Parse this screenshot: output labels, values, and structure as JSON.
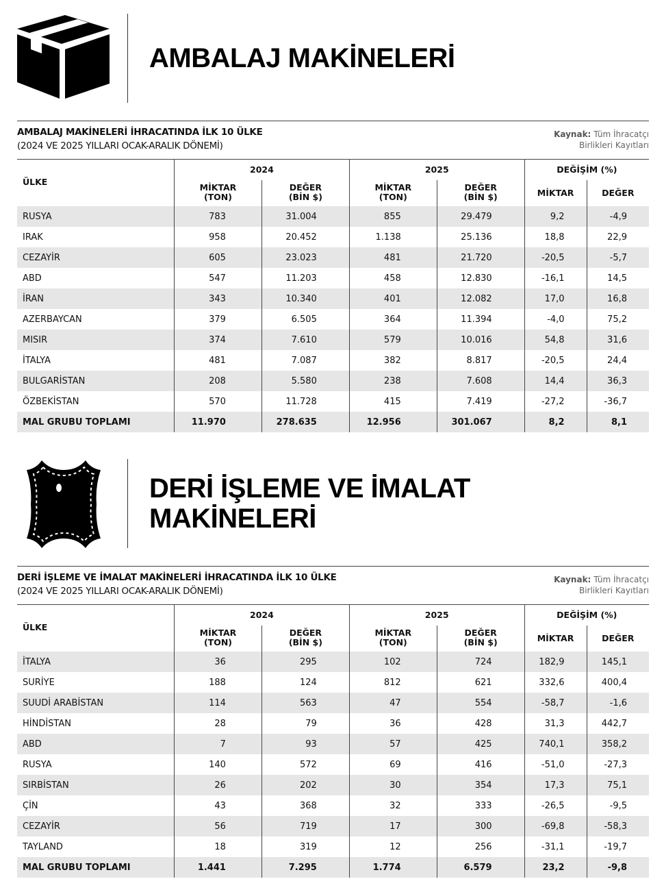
{
  "sections": [
    {
      "title_lines": [
        "AMBALAJ MAKİNELERİ"
      ],
      "icon": "box-icon",
      "table_title": "AMBALAJ MAKİNELERİ İHRACATINDA İLK 10 ÜLKE",
      "table_subtitle": "(2024 VE 2025 YILLARI OCAK-ARALIK DÖNEMİ)",
      "source_label": "Kaynak:",
      "source_line1": "Tüm İhracatçı",
      "source_line2": "Birlikleri Kayıtları",
      "headers": {
        "country": "ÜLKE",
        "y2024": "2024",
        "y2025": "2025",
        "change": "DEĞİŞİM (%)",
        "qty": "MİKTAR\n(TON)",
        "val": "DEĞER\n(BİN $)",
        "qty_short": "MİKTAR",
        "val_short": "DEĞER"
      },
      "rows": [
        [
          "RUSYA",
          "783",
          "31.004",
          "855",
          "29.479",
          "9,2",
          "-4,9"
        ],
        [
          "IRAK",
          "958",
          "20.452",
          "1.138",
          "25.136",
          "18,8",
          "22,9"
        ],
        [
          "CEZAYİR",
          "605",
          "23.023",
          "481",
          "21.720",
          "-20,5",
          "-5,7"
        ],
        [
          "ABD",
          "547",
          "11.203",
          "458",
          "12.830",
          "-16,1",
          "14,5"
        ],
        [
          "İRAN",
          "343",
          "10.340",
          "401",
          "12.082",
          "17,0",
          "16,8"
        ],
        [
          "AZERBAYCAN",
          "379",
          "6.505",
          "364",
          "11.394",
          "-4,0",
          "75,2"
        ],
        [
          "MISIR",
          "374",
          "7.610",
          "579",
          "10.016",
          "54,8",
          "31,6"
        ],
        [
          "İTALYA",
          "481",
          "7.087",
          "382",
          "8.817",
          "-20,5",
          "24,4"
        ],
        [
          "BULGARİSTAN",
          "208",
          "5.580",
          "238",
          "7.608",
          "14,4",
          "36,3"
        ],
        [
          "ÖZBEKİSTAN",
          "570",
          "11.728",
          "415",
          "7.419",
          "-27,2",
          "-36,7"
        ]
      ],
      "total": [
        "MAL GRUBU TOPLAMI",
        "11.970",
        "278.635",
        "12.956",
        "301.067",
        "8,2",
        "8,1"
      ]
    },
    {
      "title_lines": [
        "DERİ İŞLEME VE İMALAT",
        "MAKİNELERİ"
      ],
      "icon": "leather-hide-icon",
      "table_title": "DERİ İŞLEME VE İMALAT MAKİNELERİ İHRACATINDA İLK 10 ÜLKE",
      "table_subtitle": "(2024 VE 2025 YILLARI OCAK-ARALIK DÖNEMİ)",
      "source_label": "Kaynak:",
      "source_line1": "Tüm İhracatçı",
      "source_line2": "Birlikleri Kayıtları",
      "headers": {
        "country": "ÜLKE",
        "y2024": "2024",
        "y2025": "2025",
        "change": "DEĞİŞİM (%)",
        "qty": "MİKTAR\n(TON)",
        "val": "DEĞER\n(BİN $)",
        "qty_short": "MİKTAR",
        "val_short": "DEĞER"
      },
      "rows": [
        [
          "İTALYA",
          "36",
          "295",
          "102",
          "724",
          "182,9",
          "145,1"
        ],
        [
          "SURİYE",
          "188",
          "124",
          "812",
          "621",
          "332,6",
          "400,4"
        ],
        [
          "SUUDİ ARABİSTAN",
          "114",
          "563",
          "47",
          "554",
          "-58,7",
          "-1,6"
        ],
        [
          "HİNDİSTAN",
          "28",
          "79",
          "36",
          "428",
          "31,3",
          "442,7"
        ],
        [
          "ABD",
          "7",
          "93",
          "57",
          "425",
          "740,1",
          "358,2"
        ],
        [
          "RUSYA",
          "140",
          "572",
          "69",
          "416",
          "-51,0",
          "-27,3"
        ],
        [
          "SIRBİSTAN",
          "26",
          "202",
          "30",
          "354",
          "17,3",
          "75,1"
        ],
        [
          "ÇİN",
          "43",
          "368",
          "32",
          "333",
          "-26,5",
          "-9,5"
        ],
        [
          "CEZAYİR",
          "56",
          "719",
          "17",
          "300",
          "-69,8",
          "-58,3"
        ],
        [
          "TAYLAND",
          "18",
          "319",
          "12",
          "256",
          "-31,1",
          "-19,7"
        ]
      ],
      "total": [
        "MAL GRUBU TOPLAMI",
        "1.441",
        "7.295",
        "1.774",
        "6.579",
        "23,2",
        "-9,8"
      ]
    }
  ]
}
